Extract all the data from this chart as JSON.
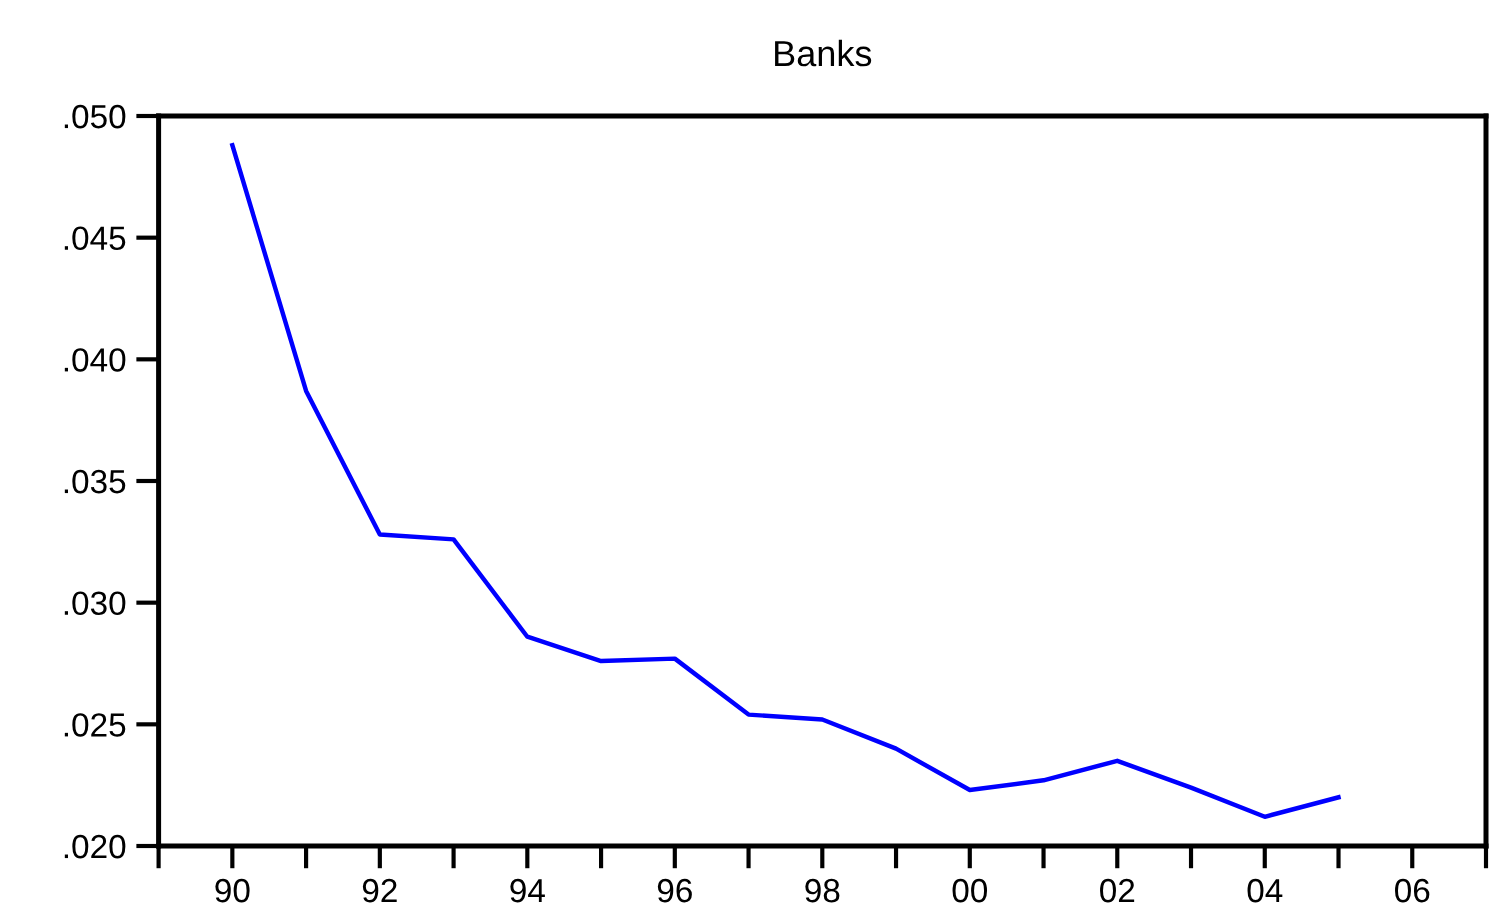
{
  "chart_data": {
    "type": "line",
    "title": "Banks",
    "x": [
      1990,
      1991,
      1992,
      1993,
      1994,
      1995,
      1996,
      1997,
      1998,
      1999,
      2000,
      2001,
      2002,
      2003,
      2004,
      2005
    ],
    "series": [
      {
        "color": "#0000ff",
        "values": [
          0.0488,
          0.0387,
          0.0328,
          0.0326,
          0.0286,
          0.0276,
          0.0277,
          0.0254,
          0.0252,
          0.024,
          0.0223,
          0.0227,
          0.0235,
          0.0224,
          0.0212,
          0.022
        ]
      }
    ],
    "xlim": [
      1989,
      2007
    ],
    "xticks": [
      {
        "value": 1989,
        "label": null
      },
      {
        "value": 1990,
        "label": "90"
      },
      {
        "value": 1991,
        "label": null
      },
      {
        "value": 1992,
        "label": "92"
      },
      {
        "value": 1993,
        "label": null
      },
      {
        "value": 1994,
        "label": "94"
      },
      {
        "value": 1995,
        "label": null
      },
      {
        "value": 1996,
        "label": "96"
      },
      {
        "value": 1997,
        "label": null
      },
      {
        "value": 1998,
        "label": "98"
      },
      {
        "value": 1999,
        "label": null
      },
      {
        "value": 2000,
        "label": "00"
      },
      {
        "value": 2001,
        "label": null
      },
      {
        "value": 2002,
        "label": "02"
      },
      {
        "value": 2003,
        "label": null
      },
      {
        "value": 2004,
        "label": "04"
      },
      {
        "value": 2005,
        "label": null
      },
      {
        "value": 2006,
        "label": "06"
      },
      {
        "value": 2007,
        "label": null
      }
    ],
    "ylim": [
      0.02,
      0.05
    ],
    "yticks": [
      {
        "value": 0.02,
        "label": ".020"
      },
      {
        "value": 0.025,
        "label": ".025"
      },
      {
        "value": 0.03,
        "label": ".030"
      },
      {
        "value": 0.035,
        "label": ".035"
      },
      {
        "value": 0.04,
        "label": ".040"
      },
      {
        "value": 0.045,
        "label": ".045"
      },
      {
        "value": 0.05,
        "label": ".050"
      }
    ],
    "grid": false,
    "legend": false,
    "marker": "none",
    "line_style": "solid"
  }
}
